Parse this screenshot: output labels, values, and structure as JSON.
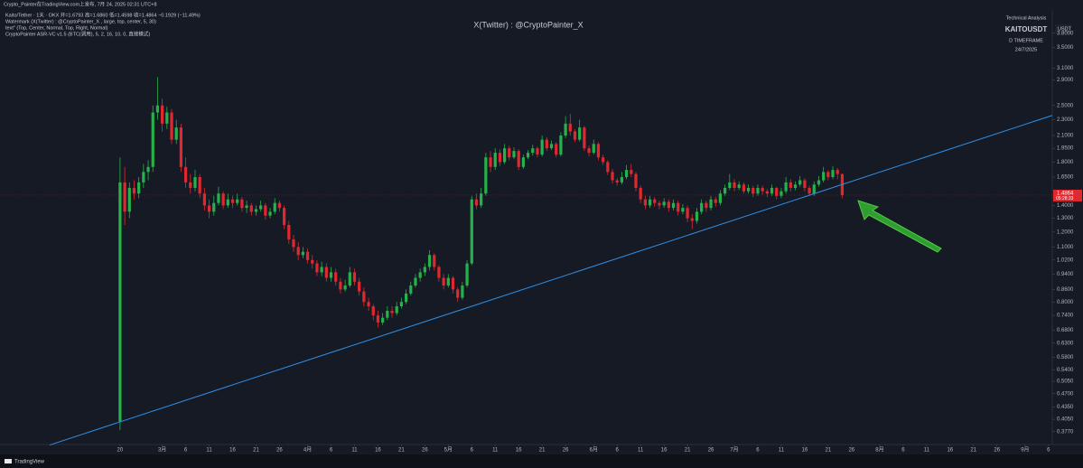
{
  "header": {
    "publisher": "Crypto_Painter在TradingView.com上发布, 7月 24, 2025 02:31 UTC+8",
    "legend": [
      "Kaito/Tether · 1天 · OKX  开=1.6793 高=1.6860 低=1.4598 收=1.4864 −0.1929 (−11.49%)",
      "Watermark (X(Twitter) : @CryptoPainter_X , large, top, center, 5, 30)",
      "text\" (Top, Center, Normal, Top, Right, Normal)",
      "CryptoPainter ASR-VC v1.5 (BTC(调用), 5, 2, 16, 10, 0, 直接模式)"
    ],
    "watermark": "X(Twitter) : @CryptoPainter_X",
    "info": [
      "Technical Analysis",
      "KAITOUSDT",
      "D TIMEFRAME",
      "24/7/2025"
    ],
    "currency": "USDT",
    "brand": "TradingView"
  },
  "chart_data": {
    "type": "candlestick",
    "log_scale": true,
    "up_color": "#26b24a",
    "down_color": "#e0292f",
    "xlim": [
      -25.6,
      198.8
    ],
    "ylim": [
      0.35,
      4.35
    ],
    "yticks": [
      {
        "value": 3.8,
        "label": "3.8000"
      },
      {
        "value": 3.5,
        "label": "3.5000"
      },
      {
        "value": 3.1,
        "label": "3.1000"
      },
      {
        "value": 2.9,
        "label": "2.9000"
      },
      {
        "value": 2.5,
        "label": "2.5000"
      },
      {
        "value": 2.3,
        "label": "2.3000"
      },
      {
        "value": 2.1,
        "label": "2.1000"
      },
      {
        "value": 1.95,
        "label": "1.9500"
      },
      {
        "value": 1.8,
        "label": "1.8000"
      },
      {
        "value": 1.65,
        "label": "1.6500"
      },
      {
        "value": 1.4,
        "label": "1.4000"
      },
      {
        "value": 1.3,
        "label": "1.3000"
      },
      {
        "value": 1.2,
        "label": "1.2000"
      },
      {
        "value": 1.1,
        "label": "1.1000"
      },
      {
        "value": 1.02,
        "label": "1.0200"
      },
      {
        "value": 0.94,
        "label": "0.9400"
      },
      {
        "value": 0.86,
        "label": "0.8600"
      },
      {
        "value": 0.8,
        "label": "0.8000"
      },
      {
        "value": 0.74,
        "label": "0.7400"
      },
      {
        "value": 0.68,
        "label": "0.6800"
      },
      {
        "value": 0.63,
        "label": "0.6300"
      },
      {
        "value": 0.58,
        "label": "0.5800"
      },
      {
        "value": 0.54,
        "label": "0.5400"
      },
      {
        "value": 0.505,
        "label": "0.5050"
      },
      {
        "value": 0.47,
        "label": "0.4700"
      },
      {
        "value": 0.435,
        "label": "0.4350"
      },
      {
        "value": 0.405,
        "label": "0.4050"
      },
      {
        "value": 0.377,
        "label": "0.3770"
      }
    ],
    "xticks": [
      {
        "value": 0,
        "label": "20"
      },
      {
        "value": 9,
        "label": "3月"
      },
      {
        "value": 14,
        "label": "6"
      },
      {
        "value": 19,
        "label": "11"
      },
      {
        "value": 24,
        "label": "16"
      },
      {
        "value": 29,
        "label": "21"
      },
      {
        "value": 34,
        "label": "26"
      },
      {
        "value": 40,
        "label": "4月"
      },
      {
        "value": 45,
        "label": "6"
      },
      {
        "value": 50,
        "label": "11"
      },
      {
        "value": 55,
        "label": "16"
      },
      {
        "value": 60,
        "label": "21"
      },
      {
        "value": 65,
        "label": "26"
      },
      {
        "value": 70,
        "label": "5月"
      },
      {
        "value": 75,
        "label": "6"
      },
      {
        "value": 80,
        "label": "11"
      },
      {
        "value": 85,
        "label": "16"
      },
      {
        "value": 90,
        "label": "21"
      },
      {
        "value": 95,
        "label": "26"
      },
      {
        "value": 101,
        "label": "6月"
      },
      {
        "value": 106,
        "label": "6"
      },
      {
        "value": 111,
        "label": "11"
      },
      {
        "value": 116,
        "label": "16"
      },
      {
        "value": 121,
        "label": "21"
      },
      {
        "value": 126,
        "label": "26"
      },
      {
        "value": 131,
        "label": "7月"
      },
      {
        "value": 136,
        "label": "6"
      },
      {
        "value": 141,
        "label": "11"
      },
      {
        "value": 146,
        "label": "16"
      },
      {
        "value": 151,
        "label": "21"
      },
      {
        "value": 156,
        "label": "26"
      },
      {
        "value": 162,
        "label": "8月"
      },
      {
        "value": 167,
        "label": "6"
      },
      {
        "value": 172,
        "label": "11"
      },
      {
        "value": 177,
        "label": "16"
      },
      {
        "value": 182,
        "label": "21"
      },
      {
        "value": 187,
        "label": "26"
      },
      {
        "value": 193,
        "label": "9月"
      },
      {
        "value": 198,
        "label": "6"
      }
    ],
    "ohlc": [
      [
        0.4,
        1.85,
        0.38,
        1.6
      ],
      [
        1.6,
        1.75,
        1.25,
        1.35
      ],
      [
        1.35,
        1.6,
        1.3,
        1.55
      ],
      [
        1.55,
        1.62,
        1.45,
        1.5
      ],
      [
        1.5,
        1.65,
        1.46,
        1.6
      ],
      [
        1.6,
        1.78,
        1.55,
        1.7
      ],
      [
        1.7,
        1.82,
        1.62,
        1.75
      ],
      [
        1.75,
        2.5,
        1.7,
        2.4
      ],
      [
        2.4,
        2.95,
        2.3,
        2.5
      ],
      [
        2.5,
        2.6,
        2.15,
        2.25
      ],
      [
        2.25,
        2.48,
        2.18,
        2.4
      ],
      [
        2.4,
        2.45,
        2.0,
        2.05
      ],
      [
        2.05,
        2.3,
        2.0,
        2.2
      ],
      [
        2.2,
        2.25,
        1.7,
        1.75
      ],
      [
        1.75,
        1.85,
        1.55,
        1.6
      ],
      [
        1.6,
        1.68,
        1.5,
        1.55
      ],
      [
        1.55,
        1.72,
        1.52,
        1.65
      ],
      [
        1.65,
        1.68,
        1.46,
        1.5
      ],
      [
        1.5,
        1.55,
        1.36,
        1.4
      ],
      [
        1.4,
        1.45,
        1.3,
        1.35
      ],
      [
        1.35,
        1.48,
        1.32,
        1.42
      ],
      [
        1.42,
        1.56,
        1.4,
        1.5
      ],
      [
        1.5,
        1.52,
        1.37,
        1.4
      ],
      [
        1.4,
        1.5,
        1.38,
        1.45
      ],
      [
        1.45,
        1.48,
        1.38,
        1.42
      ],
      [
        1.42,
        1.5,
        1.4,
        1.45
      ],
      [
        1.45,
        1.47,
        1.35,
        1.38
      ],
      [
        1.38,
        1.44,
        1.34,
        1.4
      ],
      [
        1.4,
        1.42,
        1.32,
        1.35
      ],
      [
        1.35,
        1.4,
        1.32,
        1.37
      ],
      [
        1.37,
        1.44,
        1.35,
        1.4
      ],
      [
        1.4,
        1.42,
        1.29,
        1.32
      ],
      [
        1.32,
        1.38,
        1.3,
        1.35
      ],
      [
        1.35,
        1.46,
        1.33,
        1.42
      ],
      [
        1.42,
        1.44,
        1.35,
        1.38
      ],
      [
        1.38,
        1.4,
        1.22,
        1.25
      ],
      [
        1.25,
        1.28,
        1.12,
        1.15
      ],
      [
        1.15,
        1.18,
        1.07,
        1.1
      ],
      [
        1.1,
        1.13,
        1.02,
        1.05
      ],
      [
        1.05,
        1.1,
        1.03,
        1.07
      ],
      [
        1.07,
        1.09,
        1.0,
        1.02
      ],
      [
        1.02,
        1.05,
        0.97,
        1.0
      ],
      [
        1.0,
        1.02,
        0.93,
        0.95
      ],
      [
        0.95,
        1.01,
        0.93,
        0.98
      ],
      [
        0.98,
        1.0,
        0.9,
        0.92
      ],
      [
        0.92,
        0.98,
        0.9,
        0.95
      ],
      [
        0.95,
        0.97,
        0.88,
        0.9
      ],
      [
        0.9,
        0.92,
        0.84,
        0.86
      ],
      [
        0.86,
        0.91,
        0.85,
        0.88
      ],
      [
        0.88,
        0.98,
        0.87,
        0.95
      ],
      [
        0.95,
        0.97,
        0.88,
        0.9
      ],
      [
        0.9,
        0.92,
        0.83,
        0.85
      ],
      [
        0.85,
        0.87,
        0.78,
        0.8
      ],
      [
        0.8,
        0.82,
        0.76,
        0.78
      ],
      [
        0.78,
        0.79,
        0.72,
        0.74
      ],
      [
        0.74,
        0.76,
        0.69,
        0.71
      ],
      [
        0.71,
        0.75,
        0.7,
        0.73
      ],
      [
        0.73,
        0.78,
        0.72,
        0.76
      ],
      [
        0.76,
        0.78,
        0.73,
        0.75
      ],
      [
        0.75,
        0.8,
        0.74,
        0.78
      ],
      [
        0.78,
        0.82,
        0.77,
        0.8
      ],
      [
        0.8,
        0.86,
        0.79,
        0.84
      ],
      [
        0.84,
        0.9,
        0.83,
        0.88
      ],
      [
        0.88,
        0.94,
        0.87,
        0.92
      ],
      [
        0.92,
        0.97,
        0.9,
        0.95
      ],
      [
        0.95,
        1.0,
        0.93,
        0.98
      ],
      [
        0.98,
        1.08,
        0.96,
        1.05
      ],
      [
        1.05,
        1.06,
        0.96,
        0.98
      ],
      [
        0.98,
        0.99,
        0.9,
        0.92
      ],
      [
        0.92,
        0.94,
        0.86,
        0.88
      ],
      [
        0.88,
        0.94,
        0.87,
        0.92
      ],
      [
        0.92,
        0.93,
        0.84,
        0.86
      ],
      [
        0.86,
        0.87,
        0.8,
        0.82
      ],
      [
        0.82,
        0.9,
        0.81,
        0.88
      ],
      [
        0.88,
        1.02,
        0.87,
        1.0
      ],
      [
        1.0,
        1.48,
        0.99,
        1.45
      ],
      [
        1.45,
        1.5,
        1.37,
        1.4
      ],
      [
        1.4,
        1.55,
        1.38,
        1.5
      ],
      [
        1.5,
        1.9,
        1.48,
        1.85
      ],
      [
        1.85,
        1.92,
        1.7,
        1.75
      ],
      [
        1.75,
        1.95,
        1.72,
        1.9
      ],
      [
        1.9,
        1.94,
        1.76,
        1.8
      ],
      [
        1.8,
        2.0,
        1.78,
        1.95
      ],
      [
        1.95,
        1.98,
        1.82,
        1.85
      ],
      [
        1.85,
        1.96,
        1.83,
        1.92
      ],
      [
        1.92,
        1.94,
        1.72,
        1.75
      ],
      [
        1.75,
        1.88,
        1.73,
        1.85
      ],
      [
        1.85,
        1.93,
        1.83,
        1.9
      ],
      [
        1.9,
        1.99,
        1.87,
        1.95
      ],
      [
        1.95,
        1.97,
        1.85,
        1.88
      ],
      [
        1.88,
        2.1,
        1.86,
        2.05
      ],
      [
        2.05,
        2.08,
        1.92,
        1.95
      ],
      [
        1.95,
        2.04,
        1.93,
        2.0
      ],
      [
        2.0,
        2.02,
        1.85,
        1.88
      ],
      [
        1.88,
        2.14,
        1.86,
        2.1
      ],
      [
        2.1,
        2.35,
        2.07,
        2.25
      ],
      [
        2.25,
        2.38,
        2.1,
        2.15
      ],
      [
        2.15,
        2.18,
        2.02,
        2.05
      ],
      [
        2.05,
        2.3,
        2.03,
        2.2
      ],
      [
        2.2,
        2.22,
        1.92,
        1.95
      ],
      [
        1.95,
        1.98,
        1.86,
        1.9
      ],
      [
        1.9,
        2.05,
        1.88,
        2.0
      ],
      [
        2.0,
        2.02,
        1.82,
        1.85
      ],
      [
        1.85,
        1.88,
        1.77,
        1.8
      ],
      [
        1.8,
        1.82,
        1.67,
        1.7
      ],
      [
        1.7,
        1.73,
        1.59,
        1.62
      ],
      [
        1.62,
        1.64,
        1.57,
        1.6
      ],
      [
        1.6,
        1.7,
        1.58,
        1.65
      ],
      [
        1.65,
        1.77,
        1.63,
        1.72
      ],
      [
        1.72,
        1.78,
        1.65,
        1.68
      ],
      [
        1.68,
        1.7,
        1.52,
        1.55
      ],
      [
        1.55,
        1.57,
        1.42,
        1.45
      ],
      [
        1.45,
        1.48,
        1.37,
        1.4
      ],
      [
        1.4,
        1.48,
        1.38,
        1.45
      ],
      [
        1.45,
        1.47,
        1.39,
        1.42
      ],
      [
        1.42,
        1.44,
        1.37,
        1.4
      ],
      [
        1.4,
        1.46,
        1.38,
        1.43
      ],
      [
        1.43,
        1.45,
        1.35,
        1.38
      ],
      [
        1.38,
        1.45,
        1.36,
        1.42
      ],
      [
        1.42,
        1.44,
        1.32,
        1.35
      ],
      [
        1.35,
        1.41,
        1.33,
        1.38
      ],
      [
        1.38,
        1.4,
        1.27,
        1.3
      ],
      [
        1.3,
        1.33,
        1.22,
        1.28
      ],
      [
        1.28,
        1.38,
        1.26,
        1.35
      ],
      [
        1.35,
        1.45,
        1.33,
        1.42
      ],
      [
        1.42,
        1.44,
        1.35,
        1.38
      ],
      [
        1.38,
        1.48,
        1.36,
        1.45
      ],
      [
        1.45,
        1.47,
        1.39,
        1.42
      ],
      [
        1.42,
        1.53,
        1.4,
        1.5
      ],
      [
        1.5,
        1.58,
        1.48,
        1.55
      ],
      [
        1.55,
        1.68,
        1.53,
        1.6
      ],
      [
        1.6,
        1.63,
        1.52,
        1.55
      ],
      [
        1.55,
        1.61,
        1.53,
        1.58
      ],
      [
        1.58,
        1.6,
        1.5,
        1.52
      ],
      [
        1.52,
        1.58,
        1.5,
        1.55
      ],
      [
        1.55,
        1.57,
        1.47,
        1.5
      ],
      [
        1.5,
        1.58,
        1.48,
        1.55
      ],
      [
        1.55,
        1.57,
        1.49,
        1.52
      ],
      [
        1.52,
        1.54,
        1.47,
        1.5
      ],
      [
        1.5,
        1.58,
        1.48,
        1.55
      ],
      [
        1.55,
        1.56,
        1.45,
        1.48
      ],
      [
        1.48,
        1.55,
        1.46,
        1.52
      ],
      [
        1.52,
        1.65,
        1.5,
        1.6
      ],
      [
        1.6,
        1.63,
        1.52,
        1.55
      ],
      [
        1.55,
        1.61,
        1.53,
        1.58
      ],
      [
        1.58,
        1.66,
        1.56,
        1.62
      ],
      [
        1.62,
        1.64,
        1.52,
        1.55
      ],
      [
        1.55,
        1.57,
        1.48,
        1.5
      ],
      [
        1.5,
        1.61,
        1.48,
        1.58
      ],
      [
        1.58,
        1.66,
        1.56,
        1.62
      ],
      [
        1.62,
        1.75,
        1.6,
        1.7
      ],
      [
        1.7,
        1.72,
        1.62,
        1.65
      ],
      [
        1.65,
        1.76,
        1.63,
        1.72
      ],
      [
        1.72,
        1.74,
        1.63,
        1.6793
      ],
      [
        1.6793,
        1.686,
        1.4598,
        1.4864
      ]
    ],
    "trendline": {
      "color": "#2f8fe6",
      "x": [
        -15,
        198.8
      ],
      "y": [
        0.349,
        2.36
      ]
    },
    "last_price": 1.4864,
    "countdown": "05:28:33"
  }
}
